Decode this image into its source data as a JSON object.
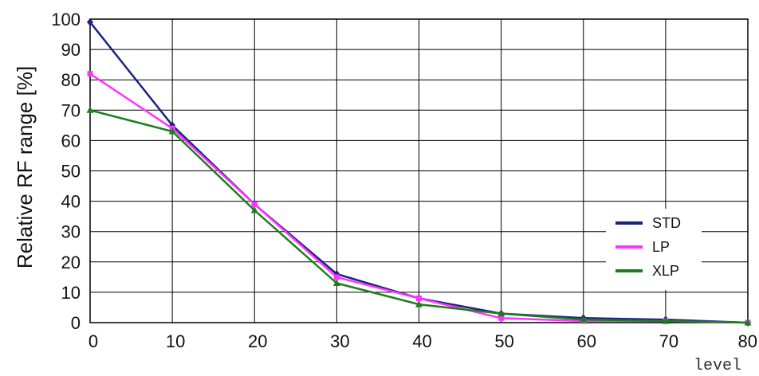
{
  "chart_data": {
    "type": "line",
    "title": "",
    "xlabel": "level",
    "ylabel": "Relative RF range [%]",
    "xlim": [
      0,
      80
    ],
    "ylim": [
      0,
      100
    ],
    "xticks": [
      0,
      10,
      20,
      30,
      40,
      50,
      60,
      70,
      80
    ],
    "yticks": [
      0,
      10,
      20,
      30,
      40,
      50,
      60,
      70,
      80,
      90,
      100
    ],
    "grid": true,
    "legend_position": "right",
    "series": [
      {
        "name": "STD",
        "color": "#1a237e",
        "marker": "diamond",
        "x": [
          0,
          10,
          20,
          30,
          40,
          50,
          60,
          70,
          80
        ],
        "y": [
          99,
          65,
          39,
          16,
          8,
          3,
          1.5,
          1,
          0
        ]
      },
      {
        "name": "LP",
        "color": "#ff33ff",
        "marker": "square",
        "x": [
          0,
          10,
          20,
          30,
          40,
          50,
          60,
          70,
          80
        ],
        "y": [
          82,
          64,
          39,
          15,
          8,
          1.5,
          0.5,
          0.5,
          0
        ]
      },
      {
        "name": "XLP",
        "color": "#1e7e1e",
        "marker": "triangle",
        "x": [
          0,
          10,
          20,
          30,
          40,
          50,
          60,
          70,
          80
        ],
        "y": [
          70,
          63,
          37,
          13,
          6,
          3,
          1,
          0.5,
          0
        ]
      }
    ]
  }
}
